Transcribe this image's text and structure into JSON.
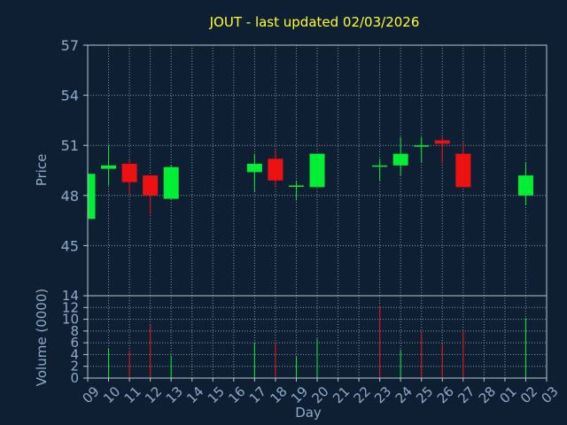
{
  "chart_data": {
    "type": "candlestick",
    "title": "JOUT - last updated 02/03/2026",
    "xlabel": "Day",
    "grid": true,
    "x_tick_labels": [
      "09",
      "10",
      "11",
      "12",
      "13",
      "14",
      "15",
      "16",
      "17",
      "18",
      "19",
      "20",
      "21",
      "22",
      "23",
      "24",
      "25",
      "26",
      "27",
      "28",
      "01",
      "02",
      "03"
    ],
    "price_panel": {
      "ylabel": "Price",
      "ylim": [
        42,
        57
      ],
      "y_ticks": [
        45,
        48,
        51,
        54,
        57
      ],
      "candles": [
        {
          "day": "09",
          "open": 46.6,
          "high": 49.3,
          "low": 46.6,
          "close": 49.3
        },
        {
          "day": "10",
          "open": 49.6,
          "high": 51.0,
          "low": 48.6,
          "close": 49.8
        },
        {
          "day": "11",
          "open": 49.9,
          "high": 50.1,
          "low": 48.1,
          "close": 48.8
        },
        {
          "day": "12",
          "open": 49.2,
          "high": 49.2,
          "low": 46.9,
          "close": 48.0
        },
        {
          "day": "13",
          "open": 47.8,
          "high": 49.8,
          "low": 47.8,
          "close": 49.7
        },
        {
          "day": "17",
          "open": 49.4,
          "high": 50.5,
          "low": 48.2,
          "close": 49.9
        },
        {
          "day": "18",
          "open": 50.2,
          "high": 50.7,
          "low": 48.6,
          "close": 48.9
        },
        {
          "day": "19",
          "open": 48.6,
          "high": 48.9,
          "low": 47.7,
          "close": 48.6
        },
        {
          "day": "20",
          "open": 48.5,
          "high": 50.5,
          "low": 48.5,
          "close": 50.5
        },
        {
          "day": "23",
          "open": 49.8,
          "high": 50.2,
          "low": 48.9,
          "close": 49.8
        },
        {
          "day": "24",
          "open": 49.8,
          "high": 51.5,
          "low": 49.2,
          "close": 50.5
        },
        {
          "day": "25",
          "open": 51.0,
          "high": 51.5,
          "low": 50.0,
          "close": 51.0
        },
        {
          "day": "26",
          "open": 51.3,
          "high": 51.5,
          "low": 49.9,
          "close": 51.1
        },
        {
          "day": "27",
          "open": 50.5,
          "high": 51.2,
          "low": 48.5,
          "close": 48.5
        },
        {
          "day": "02",
          "open": 48.0,
          "high": 50.0,
          "low": 47.4,
          "close": 49.2
        }
      ]
    },
    "volume_panel": {
      "ylabel": "Volume (0000)",
      "ylim": [
        0,
        14
      ],
      "y_ticks": [
        0,
        2,
        4,
        6,
        8,
        10,
        12,
        14
      ],
      "bars": [
        {
          "day": "10",
          "value": 5.0,
          "direction": "up"
        },
        {
          "day": "11",
          "value": 4.7,
          "direction": "down"
        },
        {
          "day": "12",
          "value": 9.0,
          "direction": "down"
        },
        {
          "day": "13",
          "value": 3.8,
          "direction": "up"
        },
        {
          "day": "17",
          "value": 6.0,
          "direction": "up"
        },
        {
          "day": "18",
          "value": 6.0,
          "direction": "down"
        },
        {
          "day": "19",
          "value": 3.6,
          "direction": "up"
        },
        {
          "day": "20",
          "value": 6.7,
          "direction": "up"
        },
        {
          "day": "23",
          "value": 12.3,
          "direction": "down"
        },
        {
          "day": "24",
          "value": 4.8,
          "direction": "up"
        },
        {
          "day": "25",
          "value": 7.6,
          "direction": "down"
        },
        {
          "day": "26",
          "value": 5.8,
          "direction": "down"
        },
        {
          "day": "27",
          "value": 8.0,
          "direction": "down"
        },
        {
          "day": "02",
          "value": 10.2,
          "direction": "up"
        }
      ]
    },
    "colors": {
      "background": "#0f1f33",
      "text": "#8fa9c8",
      "title": "#ffff33",
      "grid": "#8a96a6",
      "frame": "#b8c4d2",
      "up": "#00ee33",
      "down": "#ee1111"
    }
  }
}
